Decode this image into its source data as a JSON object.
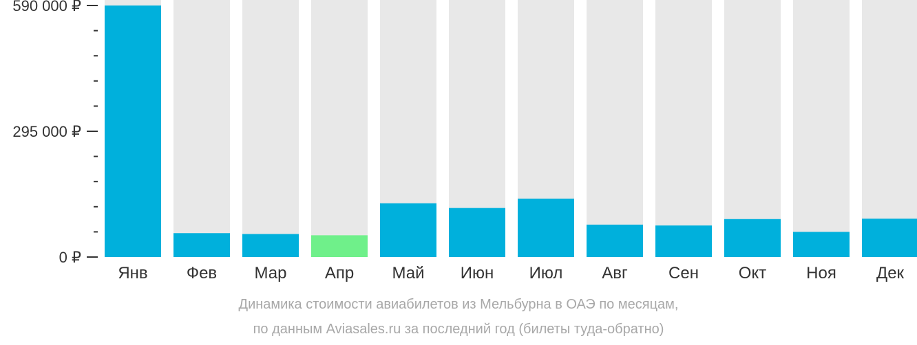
{
  "chart_data": {
    "type": "bar",
    "categories": [
      "Янв",
      "Фев",
      "Мар",
      "Апр",
      "Май",
      "Июн",
      "Июл",
      "Авг",
      "Сен",
      "Окт",
      "Ноя",
      "Дек"
    ],
    "values": [
      590000,
      56000,
      54000,
      51000,
      126000,
      115000,
      137000,
      76000,
      74000,
      89000,
      59000,
      90000
    ],
    "ylim": [
      0,
      590000
    ],
    "yticks": [
      {
        "value": 0,
        "label": "0 ₽"
      },
      {
        "value": 295000,
        "label": "295 000 ₽"
      },
      {
        "value": 590000,
        "label": "590 000 ₽"
      }
    ],
    "minor_ticks_between_major": 4,
    "highlight_index": 3,
    "colors": {
      "bar": "#00b0dc",
      "highlight": "#6ff08a",
      "background_bar": "#e8e8e8",
      "axis": "#333333"
    },
    "grid": false,
    "legend": "none"
  },
  "caption": {
    "line1": "Динамика стоимости авиабилетов из Мельбурна в ОАЭ по месяцам,",
    "line2": "по данным Aviasales.ru за последний год (билеты туда-обратно)"
  }
}
